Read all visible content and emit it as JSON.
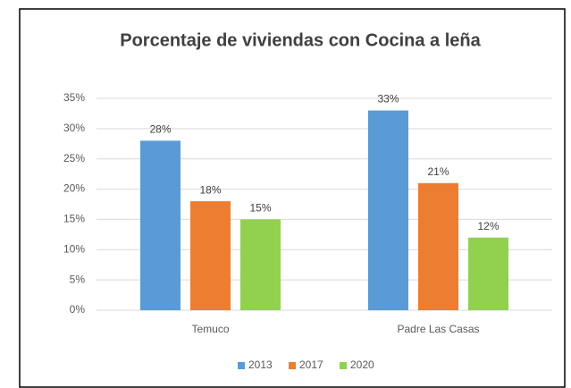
{
  "chart_data": {
    "type": "bar",
    "title": "Porcentaje de viviendas con Cocina a leña",
    "categories": [
      "Temuco",
      "Padre Las Casas"
    ],
    "series": [
      {
        "name": "2013",
        "color": "#5b9bd5",
        "values": [
          28,
          33
        ],
        "value_labels": [
          "28%",
          "33%"
        ]
      },
      {
        "name": "2017",
        "color": "#ed7d31",
        "values": [
          18,
          21
        ],
        "value_labels": [
          "18%",
          "21%"
        ]
      },
      {
        "name": "2020",
        "color": "#92d050",
        "values": [
          15,
          12
        ],
        "value_labels": [
          "15%",
          "12%"
        ]
      }
    ],
    "ylim": [
      0,
      35
    ],
    "yticks": [
      {
        "value": 0,
        "label": "0%"
      },
      {
        "value": 5,
        "label": "5%"
      },
      {
        "value": 10,
        "label": "10%"
      },
      {
        "value": 15,
        "label": "15%"
      },
      {
        "value": 20,
        "label": "20%"
      },
      {
        "value": 25,
        "label": "25%"
      },
      {
        "value": 30,
        "label": "30%"
      },
      {
        "value": 35,
        "label": "35%"
      }
    ],
    "grid": true,
    "legend": "bottom"
  }
}
